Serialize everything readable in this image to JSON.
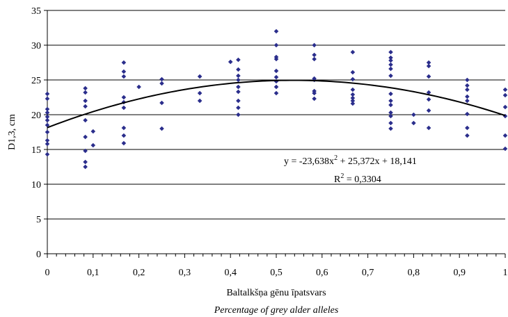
{
  "chart_data": {
    "type": "scatter",
    "xlabel": "Baltalkšņa gēnu īpatsvars",
    "xlabel_secondary": "Percentage of grey alder alleles",
    "ylabel": "D1,3, cm",
    "xlim": [
      0,
      1
    ],
    "ylim": [
      0,
      35
    ],
    "x_ticks": [
      "0",
      "0,1",
      "0,2",
      "0,3",
      "0,4",
      "0,5",
      "0,6",
      "0,7",
      "0,8",
      "0,9",
      "1"
    ],
    "y_ticks": [
      "0",
      "5",
      "10",
      "15",
      "20",
      "25",
      "30",
      "35"
    ],
    "grid": "horizontal",
    "legend": "none",
    "colors": {
      "points": "#2b2e8c",
      "trendline": "#000000",
      "grid": "#000000"
    },
    "points": [
      {
        "x": 0.0,
        "y": 14.3
      },
      {
        "x": 0.0,
        "y": 15.8
      },
      {
        "x": 0.0,
        "y": 16.3
      },
      {
        "x": 0.0,
        "y": 17.5
      },
      {
        "x": 0.0,
        "y": 18.5
      },
      {
        "x": 0.0,
        "y": 19.2
      },
      {
        "x": 0.0,
        "y": 19.7
      },
      {
        "x": 0.0,
        "y": 20.3
      },
      {
        "x": 0.0,
        "y": 20.8
      },
      {
        "x": 0.0,
        "y": 22.3
      },
      {
        "x": 0.0,
        "y": 23.0
      },
      {
        "x": 0.083,
        "y": 12.5
      },
      {
        "x": 0.083,
        "y": 13.2
      },
      {
        "x": 0.083,
        "y": 14.8
      },
      {
        "x": 0.083,
        "y": 16.8
      },
      {
        "x": 0.083,
        "y": 19.2
      },
      {
        "x": 0.083,
        "y": 21.2
      },
      {
        "x": 0.083,
        "y": 22.0
      },
      {
        "x": 0.083,
        "y": 23.2
      },
      {
        "x": 0.083,
        "y": 23.8
      },
      {
        "x": 0.1,
        "y": 15.6
      },
      {
        "x": 0.1,
        "y": 17.6
      },
      {
        "x": 0.167,
        "y": 15.9
      },
      {
        "x": 0.167,
        "y": 17.0
      },
      {
        "x": 0.167,
        "y": 18.1
      },
      {
        "x": 0.167,
        "y": 21.0
      },
      {
        "x": 0.167,
        "y": 21.8
      },
      {
        "x": 0.167,
        "y": 22.5
      },
      {
        "x": 0.167,
        "y": 25.5
      },
      {
        "x": 0.167,
        "y": 26.2
      },
      {
        "x": 0.167,
        "y": 27.5
      },
      {
        "x": 0.2,
        "y": 24.0
      },
      {
        "x": 0.25,
        "y": 18.0
      },
      {
        "x": 0.25,
        "y": 21.7
      },
      {
        "x": 0.25,
        "y": 24.5
      },
      {
        "x": 0.25,
        "y": 25.1
      },
      {
        "x": 0.333,
        "y": 22.0
      },
      {
        "x": 0.333,
        "y": 23.1
      },
      {
        "x": 0.333,
        "y": 25.5
      },
      {
        "x": 0.4,
        "y": 27.6
      },
      {
        "x": 0.417,
        "y": 20.0
      },
      {
        "x": 0.417,
        "y": 21.0
      },
      {
        "x": 0.417,
        "y": 22.0
      },
      {
        "x": 0.417,
        "y": 23.3
      },
      {
        "x": 0.417,
        "y": 24.0
      },
      {
        "x": 0.417,
        "y": 25.0
      },
      {
        "x": 0.417,
        "y": 25.6
      },
      {
        "x": 0.417,
        "y": 26.5
      },
      {
        "x": 0.417,
        "y": 27.9
      },
      {
        "x": 0.5,
        "y": 23.1
      },
      {
        "x": 0.5,
        "y": 24.0
      },
      {
        "x": 0.5,
        "y": 24.8
      },
      {
        "x": 0.5,
        "y": 25.4
      },
      {
        "x": 0.5,
        "y": 26.3
      },
      {
        "x": 0.5,
        "y": 28.0
      },
      {
        "x": 0.5,
        "y": 28.3
      },
      {
        "x": 0.5,
        "y": 30.0
      },
      {
        "x": 0.5,
        "y": 32.0
      },
      {
        "x": 0.583,
        "y": 22.3
      },
      {
        "x": 0.583,
        "y": 23.1
      },
      {
        "x": 0.583,
        "y": 23.4
      },
      {
        "x": 0.583,
        "y": 25.0
      },
      {
        "x": 0.583,
        "y": 25.2
      },
      {
        "x": 0.583,
        "y": 28.0
      },
      {
        "x": 0.583,
        "y": 28.6
      },
      {
        "x": 0.583,
        "y": 30.0
      },
      {
        "x": 0.667,
        "y": 21.6
      },
      {
        "x": 0.667,
        "y": 22.0
      },
      {
        "x": 0.667,
        "y": 22.4
      },
      {
        "x": 0.667,
        "y": 22.9
      },
      {
        "x": 0.667,
        "y": 23.6
      },
      {
        "x": 0.667,
        "y": 25.1
      },
      {
        "x": 0.667,
        "y": 26.1
      },
      {
        "x": 0.667,
        "y": 29.0
      },
      {
        "x": 0.75,
        "y": 18.0
      },
      {
        "x": 0.75,
        "y": 18.8
      },
      {
        "x": 0.75,
        "y": 19.8
      },
      {
        "x": 0.75,
        "y": 20.3
      },
      {
        "x": 0.75,
        "y": 21.4
      },
      {
        "x": 0.75,
        "y": 22.0
      },
      {
        "x": 0.75,
        "y": 23.0
      },
      {
        "x": 0.75,
        "y": 25.6
      },
      {
        "x": 0.75,
        "y": 26.6
      },
      {
        "x": 0.75,
        "y": 27.2
      },
      {
        "x": 0.75,
        "y": 27.8
      },
      {
        "x": 0.75,
        "y": 28.2
      },
      {
        "x": 0.75,
        "y": 29.0
      },
      {
        "x": 0.8,
        "y": 18.8
      },
      {
        "x": 0.8,
        "y": 20.0
      },
      {
        "x": 0.833,
        "y": 18.1
      },
      {
        "x": 0.833,
        "y": 20.6
      },
      {
        "x": 0.833,
        "y": 22.2
      },
      {
        "x": 0.833,
        "y": 23.2
      },
      {
        "x": 0.833,
        "y": 25.5
      },
      {
        "x": 0.833,
        "y": 27.0
      },
      {
        "x": 0.833,
        "y": 27.5
      },
      {
        "x": 0.917,
        "y": 17.0
      },
      {
        "x": 0.917,
        "y": 18.1
      },
      {
        "x": 0.917,
        "y": 20.1
      },
      {
        "x": 0.917,
        "y": 22.0
      },
      {
        "x": 0.917,
        "y": 22.6
      },
      {
        "x": 0.917,
        "y": 23.6
      },
      {
        "x": 0.917,
        "y": 24.2
      },
      {
        "x": 0.917,
        "y": 25.0
      },
      {
        "x": 1.0,
        "y": 15.1
      },
      {
        "x": 1.0,
        "y": 17.0
      },
      {
        "x": 1.0,
        "y": 19.8
      },
      {
        "x": 1.0,
        "y": 21.1
      },
      {
        "x": 1.0,
        "y": 22.8
      },
      {
        "x": 1.0,
        "y": 23.6
      }
    ],
    "trendline": {
      "type": "polynomial",
      "coefficients": [
        -23.638,
        25.372,
        18.141
      ],
      "equation_text": "y = -23,638x",
      "equation_exp": "2",
      "equation_rest": " + 25,372x + 18,141",
      "r2_base": "R",
      "r2_exp": "2",
      "r2_value": " = 0,3304"
    }
  }
}
